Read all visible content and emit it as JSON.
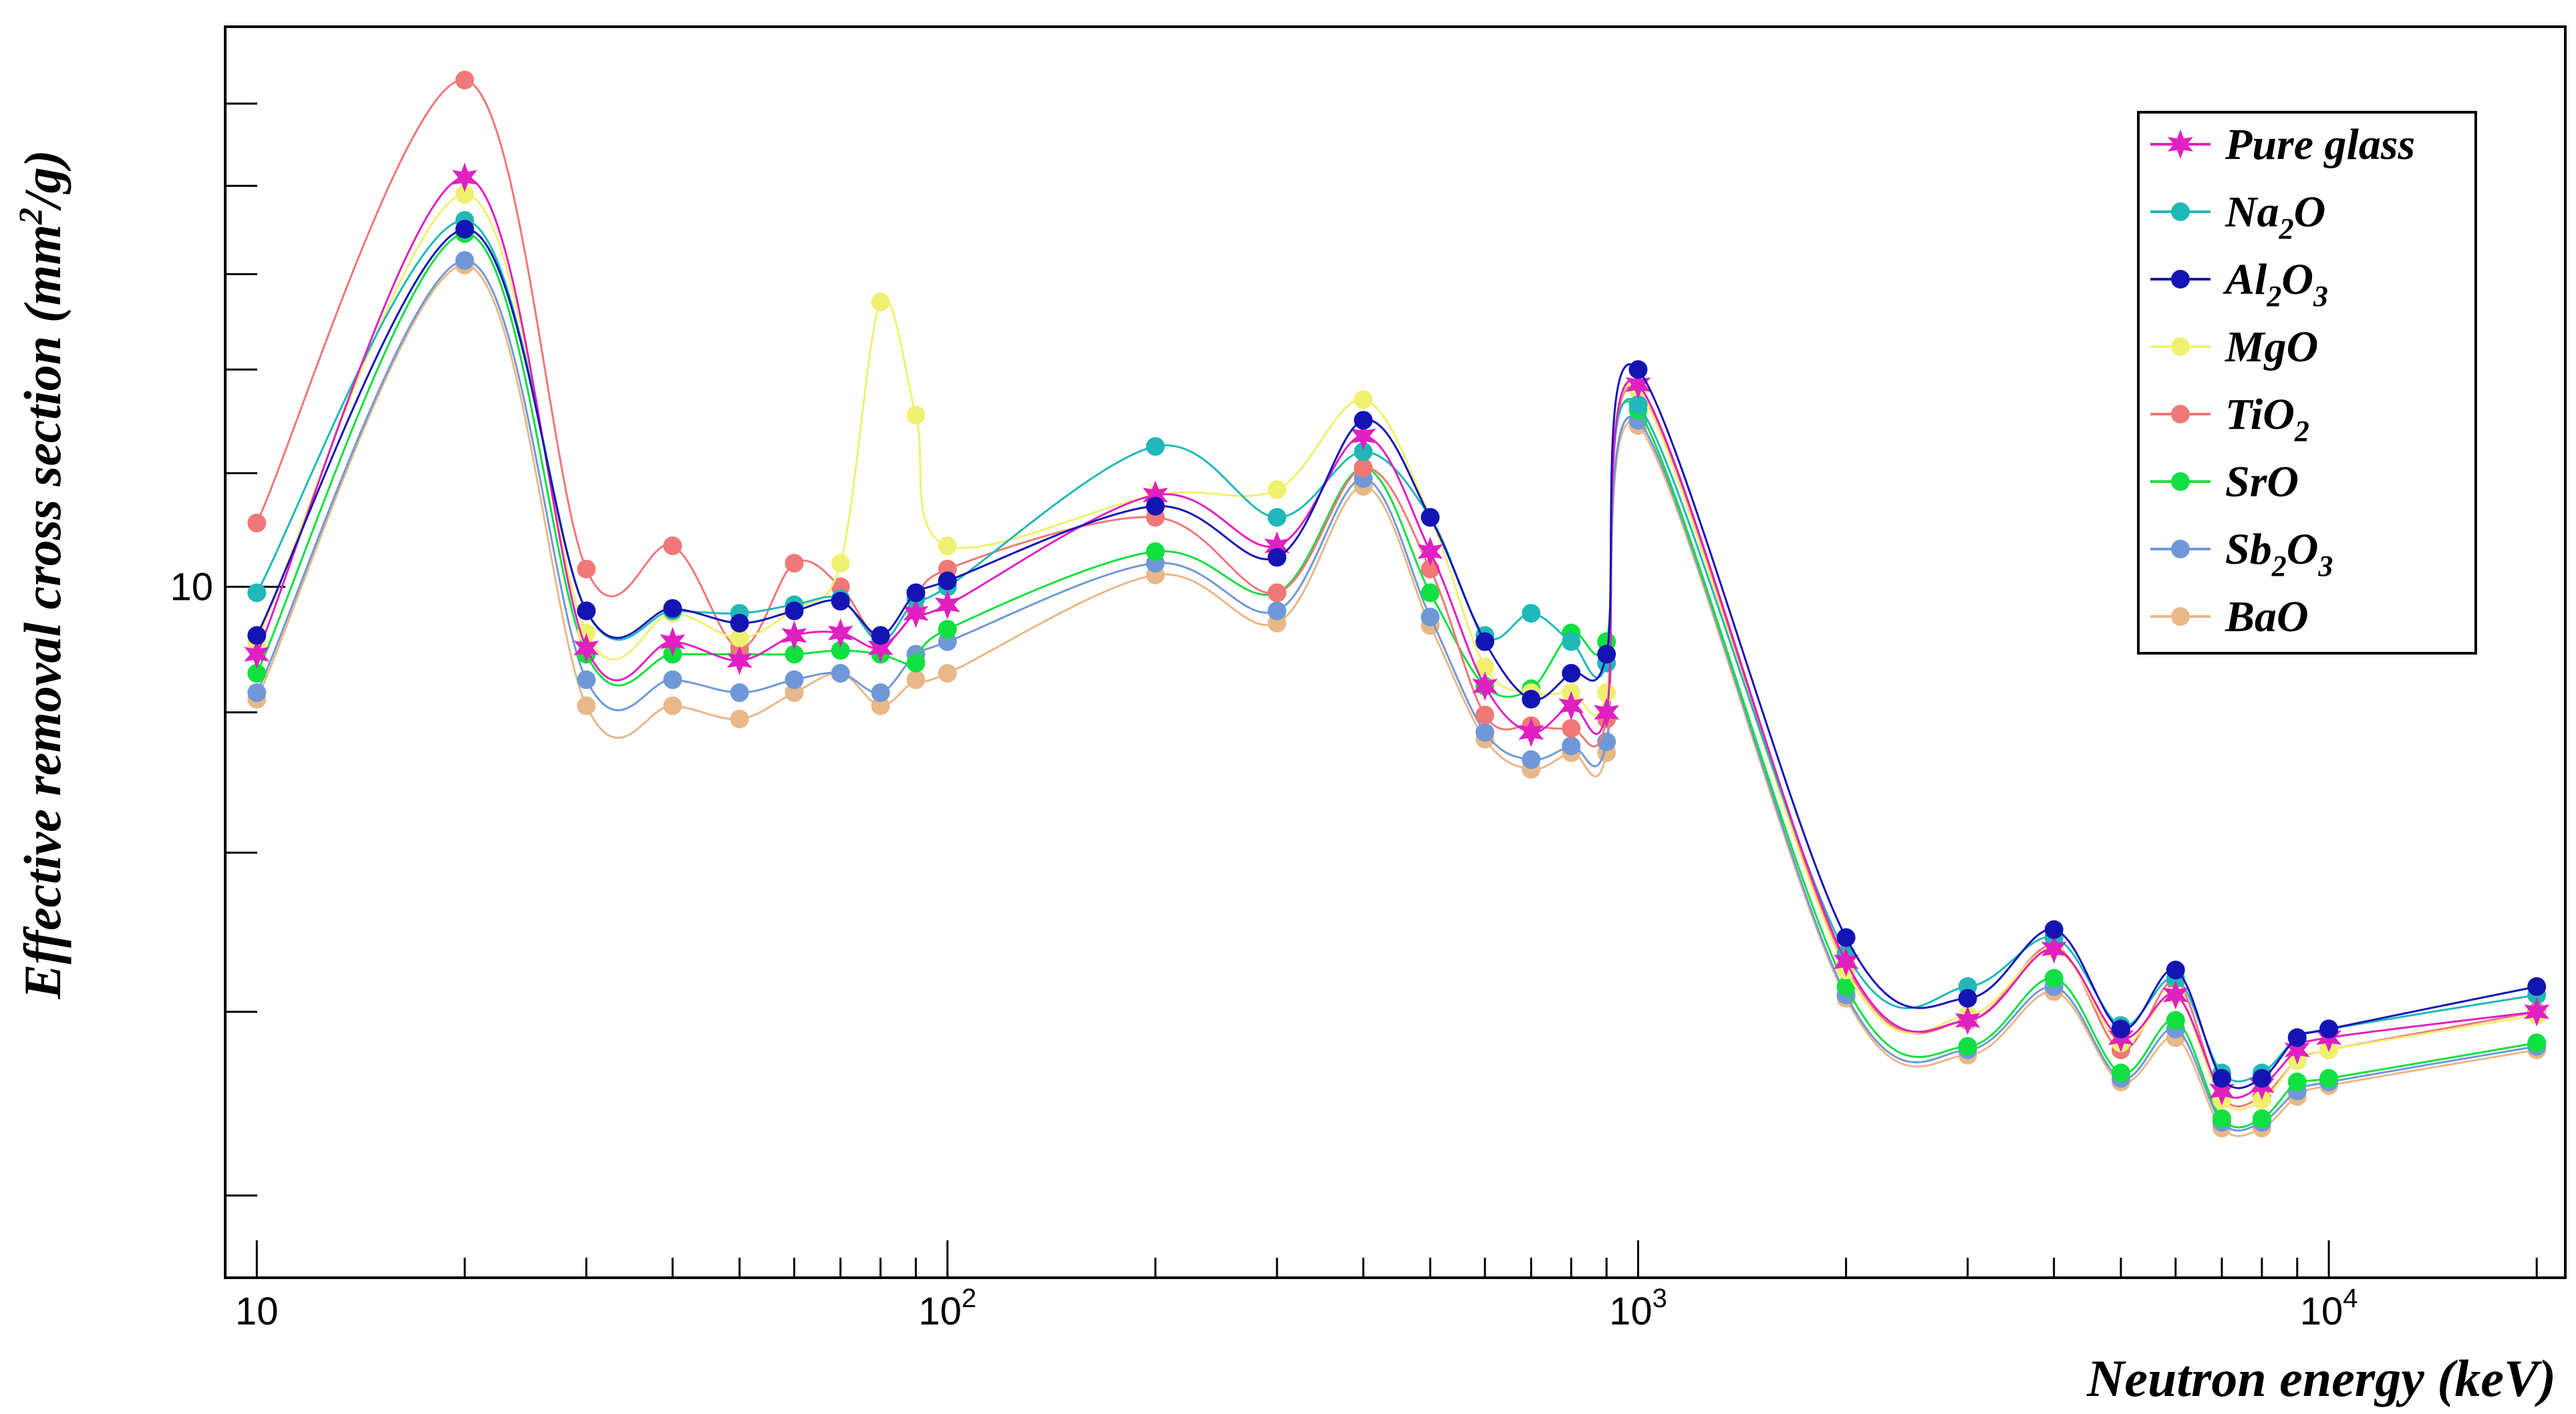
{
  "chart_data": {
    "type": "line",
    "xlabel": "Neutron energy (keV)",
    "ylabel": "Effective removal cross section (mm²/g)",
    "xlabel_text": "Neutron energy (keV)",
    "ylabel_prefix": "Effective removal cross section (mm",
    "ylabel_sup": "2",
    "ylabel_suffix": "/g)",
    "x_scale": "log",
    "y_scale": "log",
    "xlim": [
      9,
      22000
    ],
    "ylim": [
      5.6,
      16.0
    ],
    "x_tick_labels": [
      {
        "value": 10,
        "base": "10",
        "exp": ""
      },
      {
        "value": 100,
        "base": "10",
        "exp": "2"
      },
      {
        "value": 1000,
        "base": "10",
        "exp": "3"
      },
      {
        "value": 10000,
        "base": "10",
        "exp": "4"
      }
    ],
    "y_tick_labels": [
      {
        "value": 10,
        "text": "10"
      }
    ],
    "y_minor_ticks": [
      6,
      7,
      8,
      9,
      11,
      12,
      13,
      14,
      15
    ],
    "grid": false,
    "legend_position": "top-right",
    "x": [
      10,
      20,
      30,
      40,
      50,
      60,
      70,
      80,
      90,
      100,
      200,
      300,
      400,
      500,
      600,
      700,
      800,
      900,
      1000,
      2000,
      3000,
      4000,
      5000,
      6000,
      7000,
      8000,
      9000,
      10000,
      20000
    ],
    "series": [
      {
        "name": "Pure glass",
        "name_base": "Pure glass",
        "name_sub": "",
        "name_tail": "",
        "name_sub2": "",
        "color": "#e020c0",
        "marker": "star",
        "values": [
          9.45,
          14.1,
          9.5,
          9.55,
          9.4,
          9.6,
          9.62,
          9.5,
          9.78,
          9.85,
          10.8,
          10.35,
          11.35,
          10.3,
          9.2,
          8.85,
          9.05,
          9.0,
          11.85,
          7.3,
          6.95,
          7.38,
          6.85,
          7.1,
          6.55,
          6.58,
          6.78,
          6.85,
          7.0
        ]
      },
      {
        "name": "Na2O",
        "name_base": "Na",
        "name_sub": "2",
        "name_tail": "O",
        "name_sub2": "",
        "color": "#20b8b8",
        "marker": "circle",
        "values": [
          9.95,
          13.6,
          9.8,
          9.8,
          9.78,
          9.85,
          9.9,
          9.55,
          9.9,
          10.0,
          11.25,
          10.6,
          11.2,
          10.6,
          9.6,
          9.78,
          9.55,
          9.38,
          11.65,
          7.35,
          7.15,
          7.45,
          6.92,
          7.2,
          6.65,
          6.65,
          6.85,
          6.9,
          7.1
        ]
      },
      {
        "name": "Al2O3",
        "name_base": "Al",
        "name_sub": "2",
        "name_tail": "O",
        "name_sub2": "3",
        "color": "#1414b4",
        "marker": "circle",
        "values": [
          9.6,
          13.5,
          9.8,
          9.82,
          9.7,
          9.8,
          9.88,
          9.6,
          9.95,
          10.05,
          10.7,
          10.25,
          11.5,
          10.6,
          9.55,
          9.1,
          9.3,
          9.45,
          12.0,
          7.45,
          7.08,
          7.5,
          6.9,
          7.25,
          6.62,
          6.62,
          6.85,
          6.9,
          7.15
        ]
      },
      {
        "name": "MgO",
        "name_base": "MgO",
        "name_sub": "",
        "name_tail": "",
        "name_sub2": "",
        "color": "#f0f070",
        "marker": "circle",
        "values": [
          9.55,
          13.9,
          9.62,
          9.78,
          9.58,
          9.82,
          10.2,
          12.7,
          11.55,
          10.35,
          10.8,
          10.85,
          11.7,
          10.6,
          9.35,
          9.15,
          9.15,
          9.15,
          11.8,
          7.25,
          6.98,
          7.38,
          6.82,
          7.1,
          6.5,
          6.5,
          6.72,
          6.78,
          6.98
        ]
      },
      {
        "name": "TiO2",
        "name_base": "TiO",
        "name_sub": "2",
        "name_tail": "",
        "name_sub2": "",
        "color": "#f07878",
        "marker": "circle",
        "values": [
          10.55,
          15.3,
          10.15,
          10.35,
          9.5,
          10.2,
          10.0,
          9.55,
          9.8,
          10.15,
          10.6,
          9.95,
          11.05,
          10.15,
          8.98,
          8.9,
          8.88,
          8.95,
          11.8,
          7.28,
          6.95,
          7.4,
          6.78,
          7.18,
          6.52,
          6.52,
          6.72,
          6.78,
          7.0
        ]
      },
      {
        "name": "SrO",
        "name_base": "SrO",
        "name_sub": "",
        "name_tail": "",
        "name_sub2": "",
        "color": "#10e040",
        "marker": "circle",
        "values": [
          9.3,
          13.45,
          9.45,
          9.45,
          9.45,
          9.45,
          9.48,
          9.45,
          9.38,
          9.65,
          10.3,
          9.95,
          11.05,
          9.95,
          9.2,
          9.18,
          9.62,
          9.55,
          11.6,
          7.15,
          6.8,
          7.2,
          6.65,
          6.95,
          6.4,
          6.4,
          6.6,
          6.62,
          6.82
        ]
      },
      {
        "name": "Sb2O3",
        "name_base": "Sb",
        "name_sub": "2",
        "name_tail": "O",
        "name_sub2": "3",
        "color": "#7098d8",
        "marker": "circle",
        "values": [
          9.15,
          13.15,
          9.25,
          9.25,
          9.15,
          9.25,
          9.3,
          9.15,
          9.45,
          9.55,
          10.2,
          9.8,
          10.95,
          9.75,
          8.85,
          8.65,
          8.75,
          8.78,
          11.5,
          7.1,
          6.78,
          7.15,
          6.62,
          6.9,
          6.38,
          6.38,
          6.55,
          6.6,
          6.8
        ]
      },
      {
        "name": "BaO",
        "name_base": "BaO",
        "name_sub": "",
        "name_tail": "",
        "name_sub2": "",
        "color": "#e8b888",
        "marker": "circle",
        "values": [
          9.1,
          13.1,
          9.05,
          9.05,
          8.95,
          9.15,
          9.3,
          9.05,
          9.25,
          9.3,
          10.1,
          9.7,
          10.88,
          9.68,
          8.8,
          8.58,
          8.7,
          8.7,
          11.45,
          7.08,
          6.75,
          7.12,
          6.6,
          6.85,
          6.35,
          6.35,
          6.52,
          6.58,
          6.78
        ]
      }
    ]
  }
}
